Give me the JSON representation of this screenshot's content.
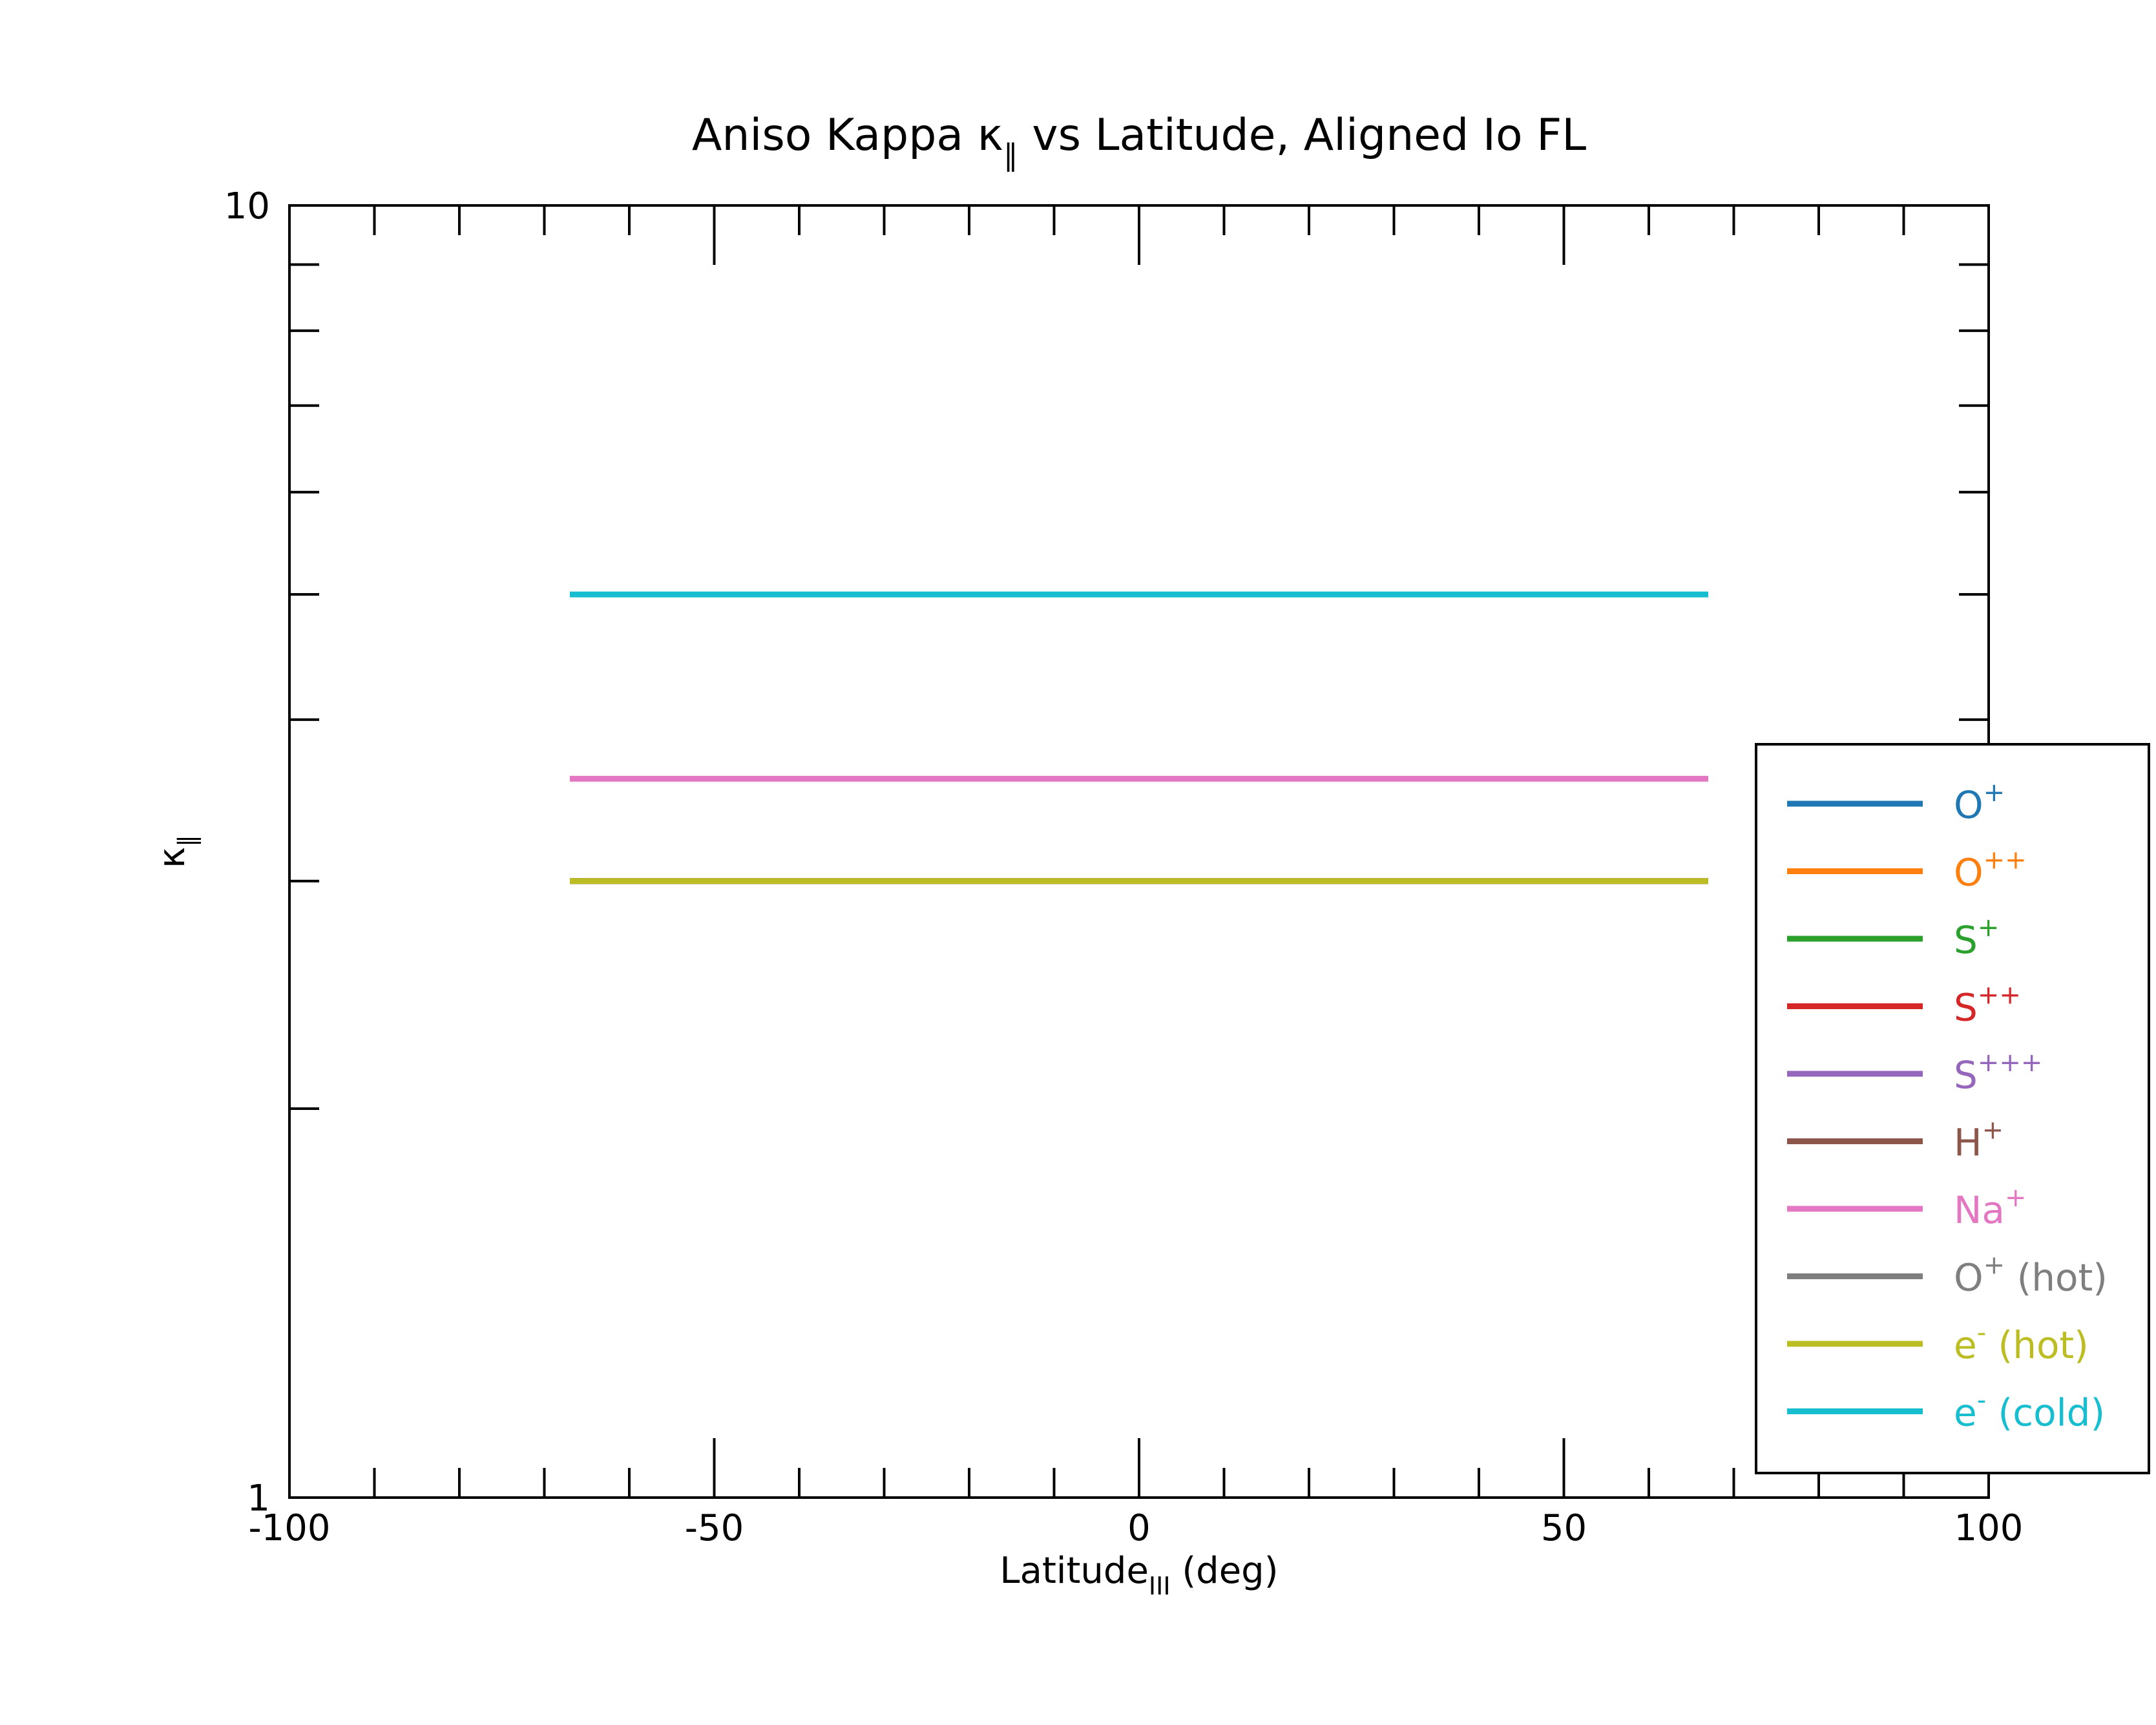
{
  "chart_data": {
    "type": "line",
    "title": {
      "main": "Aniso Kappa κ",
      "sub": "∥",
      "rest": " vs Latitude, Aligned Io FL"
    },
    "xlabel": {
      "main": "Latitude",
      "sub": "III",
      "rest": " (deg)"
    },
    "ylabel": {
      "main": "κ",
      "sub": "∥"
    },
    "xlim": [
      -100,
      100
    ],
    "ylim": [
      1,
      10
    ],
    "yscale": "log",
    "xticks": [
      "-100",
      "-50",
      "0",
      "50",
      "100"
    ],
    "xtick_values": [
      -100,
      -50,
      0,
      50,
      100
    ],
    "yticks": [
      "1",
      "10"
    ],
    "ytick_values": [
      1,
      10
    ],
    "grid": false,
    "legend_position": "right",
    "series": [
      {
        "name": "O",
        "sup": "+",
        "suffix": "",
        "color": "#1f77b4",
        "x": [
          -67,
          67
        ],
        "y": [
          3,
          3
        ]
      },
      {
        "name": "O",
        "sup": "++",
        "suffix": "",
        "color": "#ff7f0e",
        "x": [
          -67,
          67
        ],
        "y": [
          3,
          3
        ]
      },
      {
        "name": "S",
        "sup": "+",
        "suffix": "",
        "color": "#2ca02c",
        "x": [
          -67,
          67
        ],
        "y": [
          3,
          3
        ]
      },
      {
        "name": "S",
        "sup": "++",
        "suffix": "",
        "color": "#d62728",
        "x": [
          -67,
          67
        ],
        "y": [
          3,
          3
        ]
      },
      {
        "name": "S",
        "sup": "+++",
        "suffix": "",
        "color": "#9467bd",
        "x": [
          -67,
          67
        ],
        "y": [
          3,
          3
        ]
      },
      {
        "name": "H",
        "sup": "+",
        "suffix": "",
        "color": "#8c564b",
        "x": [
          -67,
          67
        ],
        "y": [
          3,
          3
        ]
      },
      {
        "name": "Na",
        "sup": "+",
        "suffix": "",
        "color": "#e377c2",
        "x": [
          -67,
          67
        ],
        "y": [
          3.6,
          3.6
        ]
      },
      {
        "name": "O",
        "sup": "+",
        "suffix": " (hot)",
        "color": "#7f7f7f",
        "x": [
          -67,
          67
        ],
        "y": [
          3,
          3
        ]
      },
      {
        "name": "e",
        "sup": "-",
        "suffix": " (hot)",
        "color": "#bcbd22",
        "x": [
          -67,
          67
        ],
        "y": [
          3,
          3
        ]
      },
      {
        "name": "e",
        "sup": "-",
        "suffix": " (cold)",
        "color": "#17becf",
        "x": [
          -67,
          67
        ],
        "y": [
          5,
          5
        ]
      }
    ]
  }
}
